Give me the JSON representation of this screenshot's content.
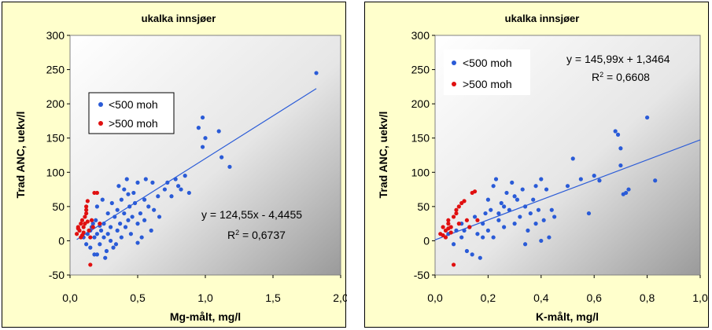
{
  "chart_data": [
    {
      "type": "scatter",
      "title": "ukalka innsjøer",
      "xlabel": "Mg-målt, mg/l",
      "ylabel": "Trad ANC, uekv/l",
      "xlim": [
        0,
        2
      ],
      "ylim": [
        -50,
        300
      ],
      "xticks": [
        "0,0",
        "0,5",
        "1,0",
        "1,5",
        "2,0"
      ],
      "yticks": [
        "-50",
        "0",
        "50",
        "100",
        "150",
        "200",
        "250",
        "300"
      ],
      "legend": {
        "position": "upper-left",
        "entries": [
          "<500 moh",
          ">500 moh"
        ]
      },
      "equation": "y = 124,55x - 4,4455",
      "r2_prefix": "R",
      "r2_value": " = 0,6737",
      "trendline": {
        "slope": 124.55,
        "intercept": -4.4455,
        "x_range": [
          0.05,
          1.82
        ]
      },
      "series": [
        {
          "name": "<500 moh",
          "color": "#2a5bd7",
          "points": [
            [
              0.1,
              5
            ],
            [
              0.12,
              -5
            ],
            [
              0.13,
              10
            ],
            [
              0.15,
              15
            ],
            [
              0.15,
              -10
            ],
            [
              0.16,
              20
            ],
            [
              0.17,
              25
            ],
            [
              0.18,
              -20
            ],
            [
              0.18,
              5
            ],
            [
              0.19,
              30
            ],
            [
              0.2,
              -20
            ],
            [
              0.2,
              10
            ],
            [
              0.22,
              22
            ],
            [
              0.22,
              -5
            ],
            [
              0.23,
              15
            ],
            [
              0.25,
              5
            ],
            [
              0.25,
              25
            ],
            [
              0.26,
              -25
            ],
            [
              0.28,
              40
            ],
            [
              0.28,
              10
            ],
            [
              0.3,
              0
            ],
            [
              0.3,
              20
            ],
            [
              0.31,
              55
            ],
            [
              0.32,
              -10
            ],
            [
              0.33,
              35
            ],
            [
              0.35,
              15
            ],
            [
              0.35,
              45
            ],
            [
              0.36,
              80
            ],
            [
              0.37,
              25
            ],
            [
              0.38,
              60
            ],
            [
              0.38,
              5
            ],
            [
              0.4,
              75
            ],
            [
              0.4,
              40
            ],
            [
              0.41,
              20
            ],
            [
              0.42,
              90
            ],
            [
              0.43,
              30
            ],
            [
              0.44,
              50
            ],
            [
              0.45,
              10
            ],
            [
              0.46,
              35
            ],
            [
              0.47,
              70
            ],
            [
              0.48,
              55
            ],
            [
              0.5,
              25
            ],
            [
              0.5,
              85
            ],
            [
              0.52,
              40
            ],
            [
              0.53,
              5
            ],
            [
              0.55,
              60
            ],
            [
              0.55,
              30
            ],
            [
              0.56,
              90
            ],
            [
              0.58,
              50
            ],
            [
              0.6,
              15
            ],
            [
              0.62,
              45
            ],
            [
              0.65,
              65
            ],
            [
              0.66,
              35
            ],
            [
              0.7,
              75
            ],
            [
              0.72,
              85
            ],
            [
              0.75,
              65
            ],
            [
              0.78,
              90
            ],
            [
              0.8,
              80
            ],
            [
              0.82,
              75
            ],
            [
              0.85,
              95
            ],
            [
              0.88,
              70
            ],
            [
              0.95,
              165
            ],
            [
              0.98,
              180
            ],
            [
              0.98,
              137
            ],
            [
              1.0,
              150
            ],
            [
              1.1,
              160
            ],
            [
              1.12,
              122
            ],
            [
              1.18,
              108
            ],
            [
              1.82,
              245
            ],
            [
              0.2,
              50
            ],
            [
              0.24,
              60
            ],
            [
              0.27,
              -15
            ],
            [
              0.34,
              -5
            ],
            [
              0.43,
              68
            ],
            [
              0.5,
              -3
            ],
            [
              0.61,
              85
            ]
          ]
        },
        {
          "name": ">500 moh",
          "color": "#e01010",
          "points": [
            [
              0.05,
              10
            ],
            [
              0.06,
              20
            ],
            [
              0.07,
              15
            ],
            [
              0.08,
              25
            ],
            [
              0.08,
              5
            ],
            [
              0.09,
              30
            ],
            [
              0.1,
              20
            ],
            [
              0.1,
              12
            ],
            [
              0.11,
              35
            ],
            [
              0.12,
              40
            ],
            [
              0.12,
              45
            ],
            [
              0.13,
              58
            ],
            [
              0.14,
              15
            ],
            [
              0.15,
              -35
            ],
            [
              0.16,
              30
            ],
            [
              0.17,
              20
            ],
            [
              0.18,
              70
            ],
            [
              0.2,
              70
            ],
            [
              0.22,
              25
            ],
            [
              0.06,
              18
            ],
            [
              0.09,
              8
            ],
            [
              0.11,
              25
            ],
            [
              0.13,
              28
            ],
            [
              0.15,
              5
            ],
            [
              0.12,
              50
            ]
          ]
        }
      ]
    },
    {
      "type": "scatter",
      "title": "ukalka innsjøer",
      "xlabel": "K-målt, mg/l",
      "ylabel": "Trad ANC, uekv/l",
      "xlim": [
        0,
        1
      ],
      "ylim": [
        -50,
        300
      ],
      "xticks": [
        "0,0",
        "0,2",
        "0,4",
        "0,6",
        "0,8",
        "1,0"
      ],
      "yticks": [
        "-50",
        "0",
        "50",
        "100",
        "150",
        "200",
        "250",
        "300"
      ],
      "legend": {
        "position": "upper-left",
        "entries": [
          "<500 moh",
          ">500 moh"
        ]
      },
      "equation": "y = 145,99x + 1,3464",
      "r2_prefix": "R",
      "r2_value": " = 0,6608",
      "trendline": {
        "slope": 145.99,
        "intercept": 1.3464,
        "x_range": [
          0.0,
          1.0
        ]
      },
      "series": [
        {
          "name": "<500 moh",
          "color": "#2a5bd7",
          "points": [
            [
              0.05,
              10
            ],
            [
              0.07,
              -5
            ],
            [
              0.08,
              15
            ],
            [
              0.1,
              5
            ],
            [
              0.1,
              25
            ],
            [
              0.12,
              -15
            ],
            [
              0.13,
              20
            ],
            [
              0.14,
              -20
            ],
            [
              0.15,
              35
            ],
            [
              0.16,
              10
            ],
            [
              0.17,
              -25
            ],
            [
              0.18,
              25
            ],
            [
              0.19,
              40
            ],
            [
              0.2,
              15
            ],
            [
              0.2,
              60
            ],
            [
              0.21,
              45
            ],
            [
              0.22,
              80
            ],
            [
              0.22,
              5
            ],
            [
              0.23,
              90
            ],
            [
              0.24,
              30
            ],
            [
              0.25,
              55
            ],
            [
              0.26,
              20
            ],
            [
              0.27,
              70
            ],
            [
              0.28,
              45
            ],
            [
              0.29,
              85
            ],
            [
              0.3,
              25
            ],
            [
              0.31,
              60
            ],
            [
              0.32,
              35
            ],
            [
              0.33,
              75
            ],
            [
              0.34,
              50
            ],
            [
              0.35,
              15
            ],
            [
              0.36,
              40
            ],
            [
              0.37,
              60
            ],
            [
              0.38,
              25
            ],
            [
              0.38,
              80
            ],
            [
              0.39,
              45
            ],
            [
              0.4,
              90
            ],
            [
              0.4,
              0
            ],
            [
              0.41,
              30
            ],
            [
              0.42,
              75
            ],
            [
              0.43,
              5
            ],
            [
              0.44,
              45
            ],
            [
              0.45,
              35
            ],
            [
              0.5,
              80
            ],
            [
              0.52,
              120
            ],
            [
              0.55,
              90
            ],
            [
              0.58,
              40
            ],
            [
              0.6,
              95
            ],
            [
              0.62,
              88
            ],
            [
              0.68,
              160
            ],
            [
              0.69,
              155
            ],
            [
              0.7,
              135
            ],
            [
              0.7,
              110
            ],
            [
              0.71,
              68
            ],
            [
              0.72,
              70
            ],
            [
              0.73,
              75
            ],
            [
              0.8,
              180
            ],
            [
              0.83,
              88
            ],
            [
              0.26,
              50
            ],
            [
              0.3,
              65
            ],
            [
              0.34,
              -5
            ],
            [
              0.18,
              5
            ],
            [
              0.11,
              15
            ],
            [
              0.24,
              40
            ]
          ]
        },
        {
          "name": ">500 moh",
          "color": "#e01010",
          "points": [
            [
              0.02,
              10
            ],
            [
              0.03,
              20
            ],
            [
              0.04,
              15
            ],
            [
              0.04,
              5
            ],
            [
              0.05,
              25
            ],
            [
              0.05,
              30
            ],
            [
              0.06,
              20
            ],
            [
              0.06,
              12
            ],
            [
              0.07,
              -35
            ],
            [
              0.07,
              35
            ],
            [
              0.08,
              40
            ],
            [
              0.08,
              45
            ],
            [
              0.09,
              25
            ],
            [
              0.1,
              55
            ],
            [
              0.11,
              58
            ],
            [
              0.12,
              30
            ],
            [
              0.13,
              20
            ],
            [
              0.14,
              70
            ],
            [
              0.15,
              72
            ],
            [
              0.16,
              30
            ],
            [
              0.03,
              8
            ],
            [
              0.05,
              18
            ],
            [
              0.09,
              50
            ]
          ]
        }
      ]
    }
  ]
}
